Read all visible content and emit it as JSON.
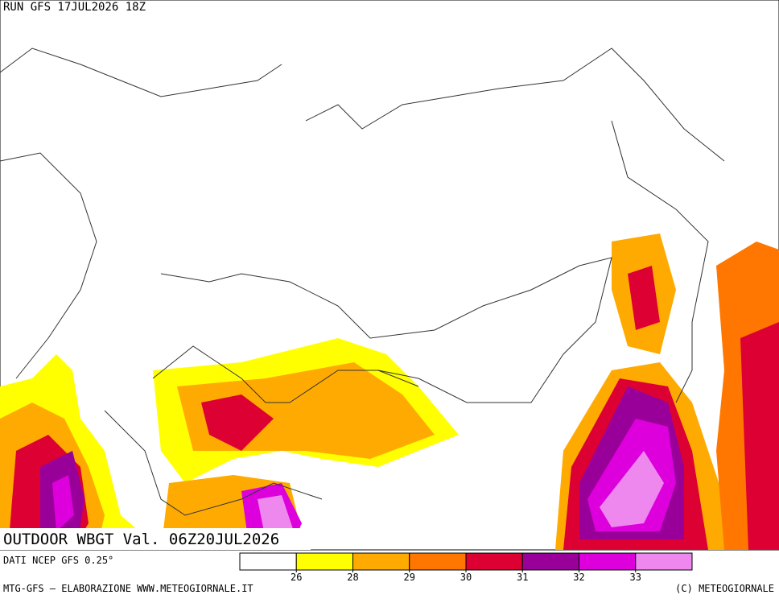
{
  "header": {
    "run": "RUN GFS 17JUL2026 18Z"
  },
  "map": {
    "title": "OUTDOOR WBGT Val. 06Z20JUL2026"
  },
  "source": "DATI NCEP GFS 0.25°",
  "legend": {
    "colors": [
      "#ffffff",
      "#ffff00",
      "#ffaa00",
      "#ff7700",
      "#dd0033",
      "#990099",
      "#dd00dd",
      "#ee88ee"
    ],
    "thresholds": [
      26,
      28,
      29,
      30,
      31,
      32,
      33
    ]
  },
  "footer": {
    "left": "MTG-GFS — ELABORAZIONE WWW.METEOGIORNALE.IT",
    "right": "(C) METEOGIORNALE"
  }
}
